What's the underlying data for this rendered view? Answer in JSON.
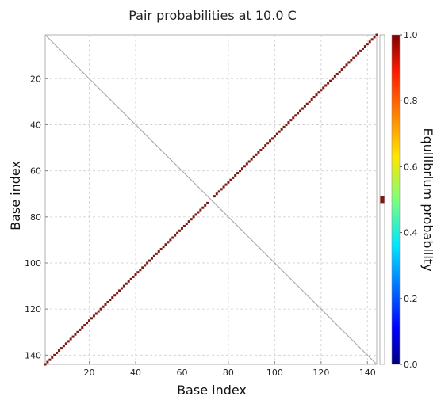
{
  "chart_data": {
    "type": "heatmap",
    "title": "Pair probabilities at 10.0 C",
    "xlabel": "Base index",
    "ylabel": "Base index",
    "xlim": [
      1,
      144
    ],
    "ylim": [
      1,
      144
    ],
    "x_ticks": [
      20,
      40,
      60,
      80,
      100,
      120,
      140
    ],
    "y_ticks": [
      20,
      40,
      60,
      80,
      100,
      120,
      140
    ],
    "grid": true,
    "colorbar": {
      "label": "Equilibrium probability",
      "min": 0.0,
      "max": 1.0,
      "ticks": [
        "0.0",
        "0.2",
        "0.4",
        "0.6",
        "0.8",
        "1.0"
      ],
      "colormap": "jet"
    },
    "pairs": [
      {
        "i_start": 1,
        "i_end": 71,
        "j_start": 144,
        "j_end": 74,
        "probability": 1.0
      },
      {
        "i_start": 74,
        "i_end": 144,
        "j_start": 71,
        "j_end": 1,
        "probability": 1.0
      }
    ],
    "unpaired_bar": {
      "unpaired_from": 71,
      "unpaired_to": 74,
      "value": 1.0
    }
  },
  "colors": {
    "pair": "#7a1a12",
    "grid": "#d6d6d6",
    "diagonal": "#aaaaaa",
    "frame": "#b0b0b0"
  }
}
